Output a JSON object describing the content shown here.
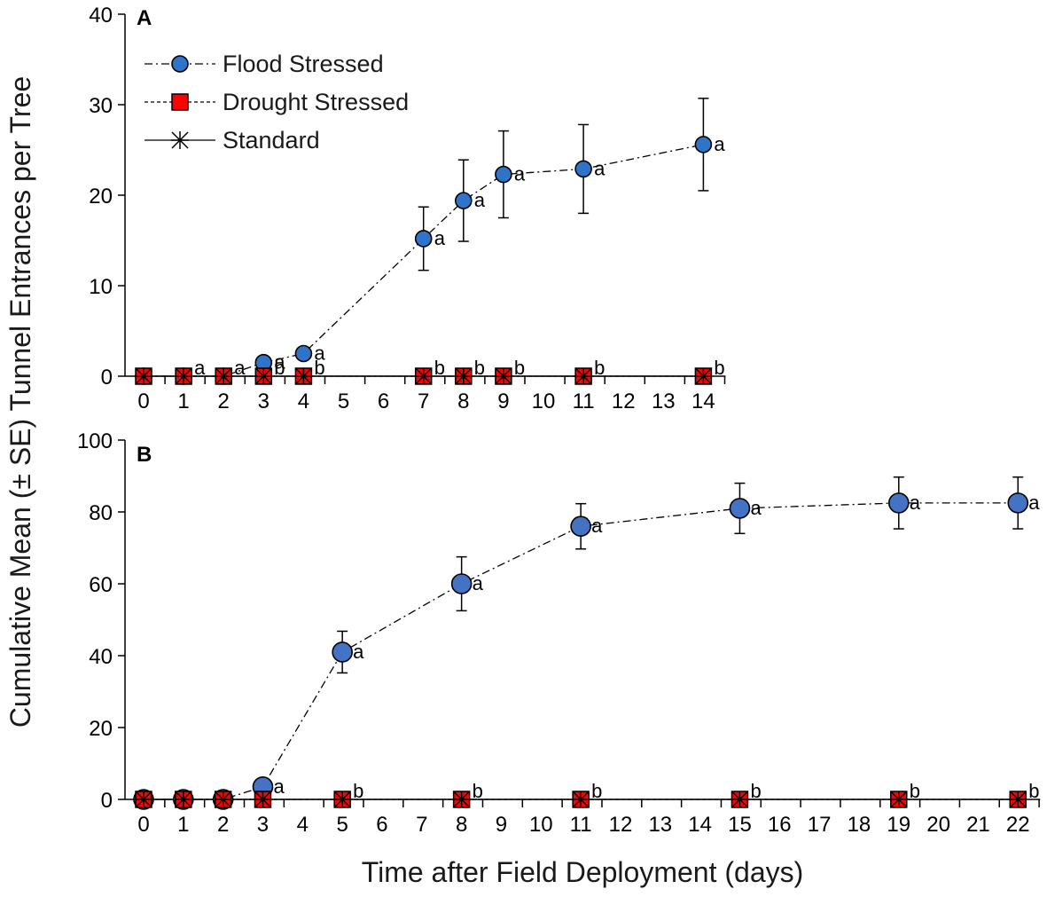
{
  "y_axis_title": "Cumulative Mean (± SE) Tunnel Entrances per Tree",
  "x_axis_title": "Time after Field Deployment (days)",
  "colors": {
    "flood_fill_a": "#2e75c9",
    "flood_fill_b": "#4472c4",
    "drought_fill": "#ff0000",
    "stroke": "#000000"
  },
  "legend": [
    {
      "name": "Flood Stressed",
      "line": "dash-dot",
      "marker": "circle"
    },
    {
      "name": "Drought Stressed",
      "line": "dashed",
      "marker": "square"
    },
    {
      "name": "Standard",
      "line": "solid",
      "marker": "asterisk"
    }
  ],
  "chart_data": [
    {
      "panel": "A",
      "type": "line",
      "categories": [
        "0",
        "1",
        "2",
        "3",
        "4",
        "5",
        "6",
        "7",
        "8",
        "9",
        "10",
        "11",
        "12",
        "13",
        "14"
      ],
      "ylim": [
        0,
        40
      ],
      "yticks": [
        0,
        10,
        20,
        30,
        40
      ],
      "series": [
        {
          "name": "Flood Stressed",
          "x": [
            "0",
            "1",
            "2",
            "3",
            "4",
            "7",
            "8",
            "9",
            "11",
            "14"
          ],
          "values": [
            0,
            0,
            0,
            1.5,
            2.5,
            15.2,
            19.4,
            22.3,
            22.9,
            25.6
          ],
          "se": [
            0,
            0,
            0,
            0,
            0,
            3.5,
            4.5,
            4.8,
            4.9,
            5.1
          ]
        },
        {
          "name": "Drought Stressed",
          "x": [
            "0",
            "1",
            "2",
            "3",
            "4",
            "7",
            "8",
            "9",
            "11",
            "14"
          ],
          "values": [
            0,
            0,
            0,
            0,
            0,
            0,
            0,
            0,
            0,
            0
          ]
        },
        {
          "name": "Standard",
          "x": [
            "0",
            "1",
            "2",
            "3",
            "4",
            "7",
            "8",
            "9",
            "11",
            "14"
          ],
          "values": [
            0,
            0,
            0,
            0,
            0,
            0,
            0,
            0,
            0,
            0
          ]
        }
      ],
      "annotations": [
        {
          "x": "1",
          "y": 0,
          "text": "a"
        },
        {
          "x": "2",
          "y": 0,
          "text": "a"
        },
        {
          "x": "3",
          "y": 1.5,
          "text": "a"
        },
        {
          "x": "3",
          "y": 0,
          "text": "b"
        },
        {
          "x": "4",
          "y": 2.5,
          "text": "a"
        },
        {
          "x": "4",
          "y": 0,
          "text": "b"
        },
        {
          "x": "7",
          "y": 15.2,
          "text": "a"
        },
        {
          "x": "7",
          "y": 0,
          "text": "b"
        },
        {
          "x": "8",
          "y": 19.4,
          "text": "a"
        },
        {
          "x": "8",
          "y": 0,
          "text": "b"
        },
        {
          "x": "9",
          "y": 22.3,
          "text": "a"
        },
        {
          "x": "9",
          "y": 0,
          "text": "b"
        },
        {
          "x": "11",
          "y": 22.9,
          "text": "a"
        },
        {
          "x": "11",
          "y": 0,
          "text": "b"
        },
        {
          "x": "14",
          "y": 25.6,
          "text": "a"
        },
        {
          "x": "14",
          "y": 0,
          "text": "b"
        }
      ]
    },
    {
      "panel": "B",
      "type": "line",
      "categories": [
        "0",
        "1",
        "2",
        "3",
        "4",
        "5",
        "6",
        "7",
        "8",
        "9",
        "10",
        "11",
        "12",
        "13",
        "14",
        "15",
        "16",
        "17",
        "18",
        "19",
        "20",
        "21",
        "22"
      ],
      "ylim": [
        0,
        100
      ],
      "yticks": [
        0,
        20,
        40,
        60,
        80,
        100
      ],
      "series": [
        {
          "name": "Flood Stressed",
          "x": [
            "0",
            "1",
            "2",
            "3",
            "5",
            "8",
            "11",
            "15",
            "19",
            "22"
          ],
          "values": [
            0,
            0,
            0,
            3.5,
            41,
            60,
            76,
            81,
            82.5,
            82.5
          ],
          "se": [
            0,
            0,
            0,
            0,
            5.8,
            7.5,
            6.3,
            7.0,
            7.2,
            7.2
          ]
        },
        {
          "name": "Drought Stressed",
          "x": [
            "0",
            "1",
            "2",
            "3",
            "5",
            "8",
            "11",
            "15",
            "19",
            "22"
          ],
          "values": [
            0,
            0,
            0,
            0,
            0,
            0,
            0,
            0,
            0,
            0
          ]
        },
        {
          "name": "Standard",
          "x": [
            "0",
            "1",
            "2",
            "3",
            "5",
            "8",
            "11",
            "15",
            "19",
            "22"
          ],
          "values": [
            0,
            0,
            0,
            0,
            0,
            0,
            0,
            0,
            0,
            0
          ]
        }
      ],
      "annotations": [
        {
          "x": "3",
          "y": 3.5,
          "text": "a"
        },
        {
          "x": "5",
          "y": 41,
          "text": "a"
        },
        {
          "x": "5",
          "y": 0,
          "text": "b"
        },
        {
          "x": "8",
          "y": 60,
          "text": "a"
        },
        {
          "x": "8",
          "y": 0,
          "text": "b"
        },
        {
          "x": "11",
          "y": 76,
          "text": "a"
        },
        {
          "x": "11",
          "y": 0,
          "text": "b"
        },
        {
          "x": "15",
          "y": 81,
          "text": "a"
        },
        {
          "x": "15",
          "y": 0,
          "text": "b"
        },
        {
          "x": "19",
          "y": 82.5,
          "text": "a"
        },
        {
          "x": "19",
          "y": 0,
          "text": "b"
        },
        {
          "x": "22",
          "y": 82.5,
          "text": "a"
        },
        {
          "x": "22",
          "y": 0,
          "text": "b"
        }
      ]
    }
  ]
}
